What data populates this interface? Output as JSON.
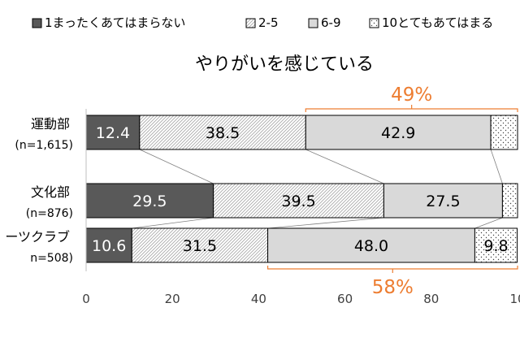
{
  "chart_data": {
    "type": "bar",
    "orientation": "horizontal",
    "stacked": true,
    "title": "やりがいを感じている",
    "legend_position": "top",
    "categories": [
      {
        "name": "運動部",
        "n": "(n=1,615)"
      },
      {
        "name": "文化部",
        "n": "(n=876)"
      },
      {
        "name": "ーツクラブ",
        "n": "n=508)"
      }
    ],
    "series": [
      {
        "name": "1まったくあてはまらない",
        "values": [
          12.4,
          29.5,
          10.6
        ],
        "labels": [
          "12.4",
          "29.5",
          "10.6"
        ],
        "fill": "solid-dark"
      },
      {
        "name": "2-5",
        "values": [
          38.5,
          39.5,
          31.5
        ],
        "labels": [
          "38.5",
          "39.5",
          "31.5"
        ],
        "fill": "hatch"
      },
      {
        "name": "6-9",
        "values": [
          42.9,
          27.5,
          48.0
        ],
        "labels": [
          "42.9",
          "27.5",
          "48.0"
        ],
        "fill": "light-gray"
      },
      {
        "name": "10とてもあてはまる",
        "values": [
          6.2,
          3.5,
          9.8
        ],
        "labels": [
          "",
          "",
          "9.8"
        ],
        "fill": "dots"
      }
    ],
    "xlim": [
      0,
      100
    ],
    "x_ticks": [
      "0",
      "20",
      "40",
      "60",
      "80",
      "10"
    ],
    "grid": false,
    "annotations": [
      {
        "text": "49%",
        "bar_index": 0,
        "from": 50.9,
        "to": 100,
        "position": "above"
      },
      {
        "text": "58%",
        "bar_index": 2,
        "from": 42.1,
        "to": 100,
        "position": "below"
      }
    ],
    "colors": {
      "series_dark": "#595959",
      "hatch_line": "#a6a6a6",
      "light_gray": "#d9d9d9",
      "dot": "#404040",
      "annotation": "#ed7d31",
      "connector": "#808080",
      "text": "#000000"
    }
  }
}
